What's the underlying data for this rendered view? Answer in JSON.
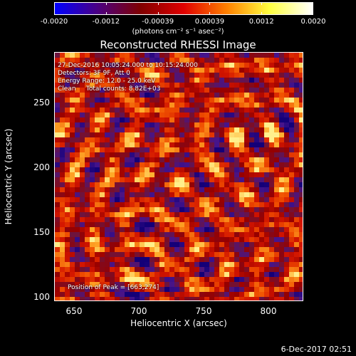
{
  "colorbar": {
    "tick_labels": [
      "-0.0020",
      "-0.0012",
      "-0.00039",
      "0.00039",
      "0.0012",
      "0.0020"
    ],
    "units": "(photons cm⁻² s⁻¹ asec⁻²)",
    "range": [
      -0.002,
      0.002
    ],
    "colors": [
      "#0000ff",
      "#4b0082",
      "#800000",
      "#e00000",
      "#ff8000",
      "#ffff40",
      "#ffffff"
    ]
  },
  "title": "Reconstructed RHESSI Image",
  "overlay": {
    "line1": "27-Dec-2016 10:05:24.000 to 10:15:24.000",
    "line2": "Detectors: 3F 9F, Att 0",
    "line3": "Energy Range: 12.0 - 25.0 keV",
    "line4": "Clean     Total counts: 8.82E+03",
    "peak": "Position of Peak = [663,274]"
  },
  "axes": {
    "xlabel": "Heliocentric X (arcsec)",
    "ylabel": "Heliocentric Y (arcsec)",
    "xticks": [
      "650",
      "700",
      "750",
      "800"
    ],
    "yticks": [
      "250",
      "200",
      "150",
      "100"
    ],
    "xlim": [
      633,
      825
    ],
    "ylim": [
      97,
      290
    ]
  },
  "timestamp": "6-Dec-2017 02:51"
}
